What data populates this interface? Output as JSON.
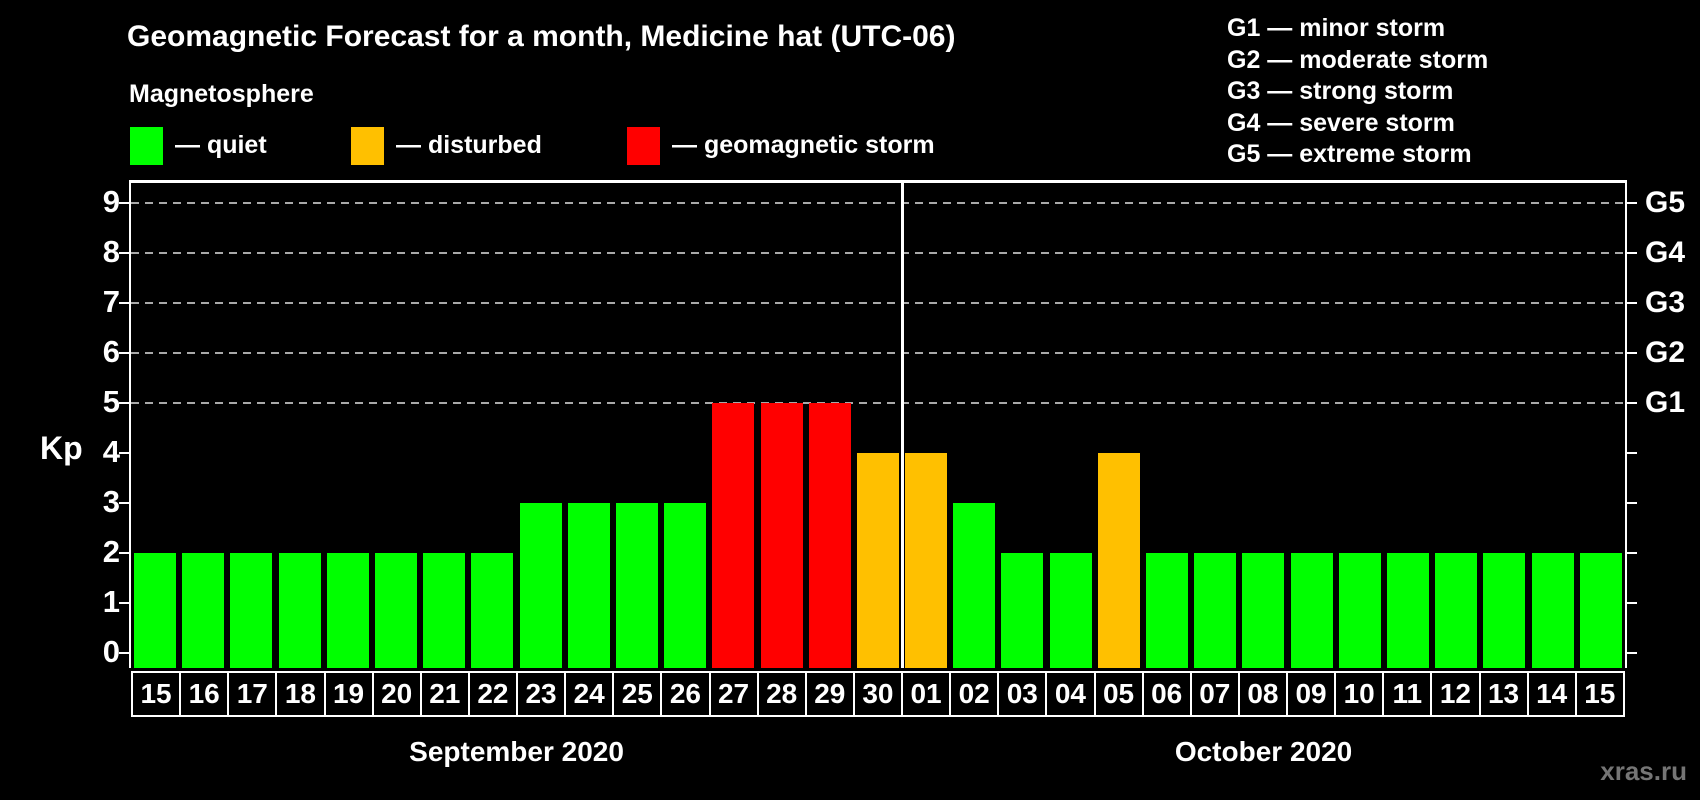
{
  "watermark": "xras.ru",
  "magnetosphere_legend": {
    "heading": "Magnetosphere",
    "items": [
      {
        "key": "quiet",
        "label": "— quiet",
        "color": "#00ff00"
      },
      {
        "key": "disturbed",
        "label": "— disturbed",
        "color": "#ffc000"
      },
      {
        "key": "storm",
        "label": "— geomagnetic storm",
        "color": "#ff0000"
      }
    ]
  },
  "g_scale_legend": [
    {
      "text": "G1 — minor storm"
    },
    {
      "text": "G2 — moderate storm"
    },
    {
      "text": "G3 — strong storm"
    },
    {
      "text": "G4 — severe storm"
    },
    {
      "text": "G5 — extreme storm"
    }
  ],
  "chart_data": {
    "type": "bar",
    "title": "Geomagnetic Forecast for a month, Medicine hat (UTC-06)",
    "ylabel": "Kp",
    "ylim": [
      0,
      9
    ],
    "yticks": [
      0,
      1,
      2,
      3,
      4,
      5,
      6,
      7,
      8,
      9
    ],
    "gridline_levels": [
      5,
      6,
      7,
      8,
      9
    ],
    "right_axis_labels": [
      {
        "kp": 5,
        "text": "G1"
      },
      {
        "kp": 6,
        "text": "G2"
      },
      {
        "kp": 7,
        "text": "G3"
      },
      {
        "kp": 8,
        "text": "G4"
      },
      {
        "kp": 9,
        "text": "G5"
      }
    ],
    "status_colors": {
      "quiet": "#00ff00",
      "disturbed": "#ffc000",
      "storm": "#ff0000"
    },
    "months": [
      {
        "name": "September 2020"
      },
      {
        "name": "October 2020"
      }
    ],
    "bars": [
      {
        "month": 0,
        "day": "15",
        "kp": 2,
        "status": "quiet"
      },
      {
        "month": 0,
        "day": "16",
        "kp": 2,
        "status": "quiet"
      },
      {
        "month": 0,
        "day": "17",
        "kp": 2,
        "status": "quiet"
      },
      {
        "month": 0,
        "day": "18",
        "kp": 2,
        "status": "quiet"
      },
      {
        "month": 0,
        "day": "19",
        "kp": 2,
        "status": "quiet"
      },
      {
        "month": 0,
        "day": "20",
        "kp": 2,
        "status": "quiet"
      },
      {
        "month": 0,
        "day": "21",
        "kp": 2,
        "status": "quiet"
      },
      {
        "month": 0,
        "day": "22",
        "kp": 2,
        "status": "quiet"
      },
      {
        "month": 0,
        "day": "23",
        "kp": 3,
        "status": "quiet"
      },
      {
        "month": 0,
        "day": "24",
        "kp": 3,
        "status": "quiet"
      },
      {
        "month": 0,
        "day": "25",
        "kp": 3,
        "status": "quiet"
      },
      {
        "month": 0,
        "day": "26",
        "kp": 3,
        "status": "quiet"
      },
      {
        "month": 0,
        "day": "27",
        "kp": 5,
        "status": "storm"
      },
      {
        "month": 0,
        "day": "28",
        "kp": 5,
        "status": "storm"
      },
      {
        "month": 0,
        "day": "29",
        "kp": 5,
        "status": "storm"
      },
      {
        "month": 0,
        "day": "30",
        "kp": 4,
        "status": "disturbed"
      },
      {
        "month": 1,
        "day": "01",
        "kp": 4,
        "status": "disturbed"
      },
      {
        "month": 1,
        "day": "02",
        "kp": 3,
        "status": "quiet"
      },
      {
        "month": 1,
        "day": "03",
        "kp": 2,
        "status": "quiet"
      },
      {
        "month": 1,
        "day": "04",
        "kp": 2,
        "status": "quiet"
      },
      {
        "month": 1,
        "day": "05",
        "kp": 4,
        "status": "disturbed"
      },
      {
        "month": 1,
        "day": "06",
        "kp": 2,
        "status": "quiet"
      },
      {
        "month": 1,
        "day": "07",
        "kp": 2,
        "status": "quiet"
      },
      {
        "month": 1,
        "day": "08",
        "kp": 2,
        "status": "quiet"
      },
      {
        "month": 1,
        "day": "09",
        "kp": 2,
        "status": "quiet"
      },
      {
        "month": 1,
        "day": "10",
        "kp": 2,
        "status": "quiet"
      },
      {
        "month": 1,
        "day": "11",
        "kp": 2,
        "status": "quiet"
      },
      {
        "month": 1,
        "day": "12",
        "kp": 2,
        "status": "quiet"
      },
      {
        "month": 1,
        "day": "13",
        "kp": 2,
        "status": "quiet"
      },
      {
        "month": 1,
        "day": "14",
        "kp": 2,
        "status": "quiet"
      },
      {
        "month": 1,
        "day": "15",
        "kp": 2,
        "status": "quiet"
      }
    ]
  }
}
